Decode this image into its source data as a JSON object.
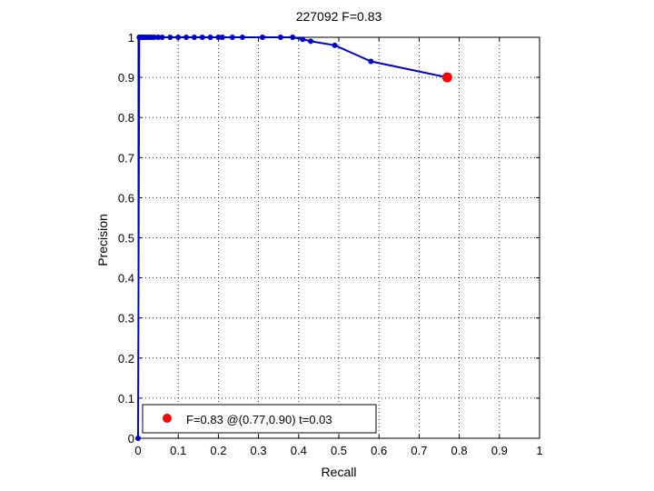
{
  "chart_data": {
    "type": "line",
    "title": "227092 F=0.83",
    "xlabel": "Recall",
    "ylabel": "Precision",
    "xlim": [
      0,
      1
    ],
    "ylim": [
      0,
      1
    ],
    "grid": true,
    "xticks": [
      "0",
      "0.1",
      "0.2",
      "0.3",
      "0.4",
      "0.5",
      "0.6",
      "0.7",
      "0.8",
      "0.9",
      "1"
    ],
    "yticks": [
      "0",
      "0.1",
      "0.2",
      "0.3",
      "0.4",
      "0.5",
      "0.6",
      "0.7",
      "0.8",
      "0.9",
      "1"
    ],
    "series": [
      {
        "color": "#0000cc",
        "x": [
          0.0,
          0.003,
          0.005,
          0.008,
          0.01,
          0.013,
          0.016,
          0.02,
          0.025,
          0.03,
          0.035,
          0.04,
          0.05,
          0.06,
          0.08,
          0.1,
          0.12,
          0.14,
          0.16,
          0.18,
          0.2,
          0.21,
          0.235,
          0.26,
          0.31,
          0.355,
          0.385,
          0.41,
          0.43,
          0.49,
          0.58,
          0.77
        ],
        "y": [
          0.0,
          1.0,
          1.0,
          1.0,
          1.0,
          1.0,
          1.0,
          1.0,
          1.0,
          1.0,
          1.0,
          1.0,
          1.0,
          1.0,
          1.0,
          1.0,
          1.0,
          1.0,
          1.0,
          1.0,
          1.0,
          1.0,
          1.0,
          1.0,
          1.0,
          1.0,
          1.0,
          0.995,
          0.99,
          0.98,
          0.94,
          0.9
        ]
      }
    ],
    "best_point": {
      "x": 0.77,
      "y": 0.9,
      "color": "#ff0000"
    },
    "legend": {
      "position": "bottom-left",
      "entries": [
        "F=0.83 @(0.77,0.90) t=0.03"
      ]
    }
  }
}
